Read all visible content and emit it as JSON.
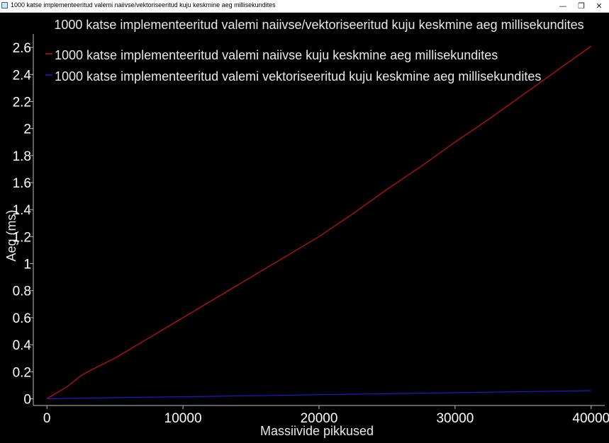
{
  "window": {
    "title": "1000 katse implementeeritud valemi naiivse/vektoriseeritud kuju keskmine aeg millisekundites",
    "minimize_glyph": "—",
    "maximize_glyph": "❐",
    "close_glyph": "✕"
  },
  "chart_data": {
    "type": "line",
    "title": "1000 katse implementeeritud valemi naiivse/vektoriseeritud kuju keskmine aeg millisekundites",
    "xlabel": "Massiivide pikkused",
    "ylabel": "Aeg (ms)",
    "xlim": [
      -1000,
      41000
    ],
    "ylim": [
      -0.05,
      2.7
    ],
    "xticks": [
      0,
      10000,
      20000,
      30000,
      40000
    ],
    "xtick_labels": [
      "0",
      "10000",
      "20000",
      "30000",
      "40000"
    ],
    "yticks": [
      0,
      0.2,
      0.4,
      0.6,
      0.8,
      1,
      1.2,
      1.4,
      1.6,
      1.8,
      2,
      2.2,
      2.4,
      2.6
    ],
    "ytick_labels": [
      "0",
      "0.2",
      "0.4",
      "0.6",
      "0.8",
      "1",
      "1.2",
      "1.4",
      "1.6",
      "1.8",
      "2",
      "2.2",
      "2.4",
      "2.6"
    ],
    "grid": false,
    "legend_position": "top-left",
    "background": "#000000",
    "series": [
      {
        "name": "1000 katse implementeeritud valemi naiivse kuju keskmine aeg millisekundites",
        "color": "#cc1111",
        "x": [
          0,
          500,
          1000,
          1500,
          2000,
          2500,
          3000,
          4000,
          5000,
          7500,
          10000,
          12500,
          15000,
          17500,
          20000,
          22500,
          25000,
          27500,
          30000,
          32500,
          35000,
          37500,
          40000
        ],
        "y": [
          0.0,
          0.03,
          0.06,
          0.09,
          0.13,
          0.17,
          0.2,
          0.25,
          0.3,
          0.45,
          0.6,
          0.75,
          0.9,
          1.05,
          1.2,
          1.37,
          1.55,
          1.72,
          1.9,
          2.07,
          2.25,
          2.43,
          2.61
        ]
      },
      {
        "name": "1000 katse implementeeritud valemi vektoriseeritud kuju keskmine aeg millisekundites",
        "color": "#1a1ad0",
        "x": [
          0,
          5000,
          10000,
          15000,
          20000,
          25000,
          30000,
          35000,
          40000
        ],
        "y": [
          0.0,
          0.008,
          0.015,
          0.022,
          0.03,
          0.037,
          0.045,
          0.052,
          0.06
        ]
      }
    ]
  }
}
